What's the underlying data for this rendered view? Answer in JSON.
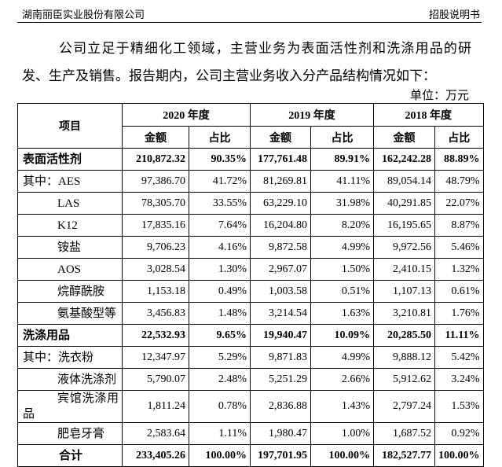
{
  "header": {
    "company": "湖南丽臣实业股份有限公司",
    "doc": "招股说明书"
  },
  "paragraph": "公司立足于精细化工领域，主营业务为表面活性剂和洗涤用品的研发、生产及销售。报告期内，公司主营业务收入分产品结构情况如下：",
  "unit": "单位：万元",
  "table": {
    "item_header": "项目",
    "years": [
      "2020 年度",
      "2019 年度",
      "2018 年度"
    ],
    "sub_headers": [
      "金额",
      "占比"
    ],
    "rows": [
      [
        "表面活性剂",
        "210,872.32",
        "90.35%",
        "177,761.48",
        "89.91%",
        "162,242.28",
        "88.89%"
      ],
      [
        "其中：AES",
        "97,386.70",
        "41.72%",
        "81,269.81",
        "41.11%",
        "89,054.14",
        "48.79%"
      ],
      [
        "LAS",
        "78,305.70",
        "33.55%",
        "63,229.10",
        "31.98%",
        "40,291.85",
        "22.07%"
      ],
      [
        "K12",
        "17,835.16",
        "7.64%",
        "16,204.80",
        "8.20%",
        "16,195.65",
        "8.87%"
      ],
      [
        "铵盐",
        "9,706.23",
        "4.16%",
        "9,872.58",
        "4.99%",
        "9,972.56",
        "5.46%"
      ],
      [
        "AOS",
        "3,028.54",
        "1.30%",
        "2,967.07",
        "1.50%",
        "2,410.15",
        "1.32%"
      ],
      [
        "烷醇酰胺",
        "1,153.18",
        "0.49%",
        "1,003.58",
        "0.51%",
        "1,107.13",
        "0.61%"
      ],
      [
        "氨基酸型等",
        "3,456.83",
        "1.48%",
        "3,214.54",
        "1.63%",
        "3,210.81",
        "1.76%"
      ],
      [
        "洗涤用品",
        "22,532.93",
        "9.65%",
        "19,940.47",
        "10.09%",
        "20,285.50",
        "11.11%"
      ],
      [
        "其中：洗衣粉",
        "12,347.97",
        "5.29%",
        "9,871.83",
        "4.99%",
        "9,888.12",
        "5.42%"
      ],
      [
        "液体洗涤剂",
        "5,790.07",
        "2.48%",
        "5,251.29",
        "2.66%",
        "5,912.62",
        "3.24%"
      ],
      [
        "宾馆洗涤用品",
        "1,811.24",
        "0.78%",
        "2,836.88",
        "1.43%",
        "2,797.24",
        "1.53%"
      ],
      [
        "肥皂牙膏",
        "2,583.64",
        "1.11%",
        "1,980.47",
        "1.00%",
        "1,687.52",
        "0.92%"
      ],
      [
        "合计",
        "233,405.26",
        "100.00%",
        "197,701.95",
        "100.00%",
        "182,527.77",
        "100.00%"
      ]
    ]
  }
}
